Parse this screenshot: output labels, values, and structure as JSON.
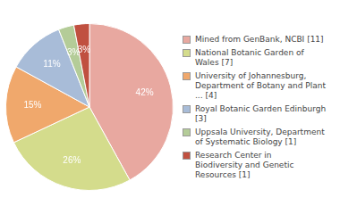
{
  "chart_data": {
    "type": "pie",
    "categories": [
      "Mined from GenBank, NCBI [11]",
      "National Botanic Garden of\nWales [7]",
      "University of Johannesburg,\nDepartment of Botany and Plant\n... [4]",
      "Royal Botanic Garden Edinburgh [3]",
      "Uppsala University, Department\nof Systematic Biology [1]",
      "Research Center in\nBiodiversity and Genetic\nResources [1]"
    ],
    "values": [
      42,
      26,
      15,
      11,
      3,
      3
    ],
    "value_labels": [
      "42%",
      "26%",
      "15%",
      "11%",
      "3%",
      "3%"
    ],
    "colors": [
      "#e8a8a0",
      "#d4dc8c",
      "#f0a86c",
      "#a8bcd8",
      "#b4cc98",
      "#c05040"
    ],
    "data_labels": true,
    "legend": "right"
  }
}
